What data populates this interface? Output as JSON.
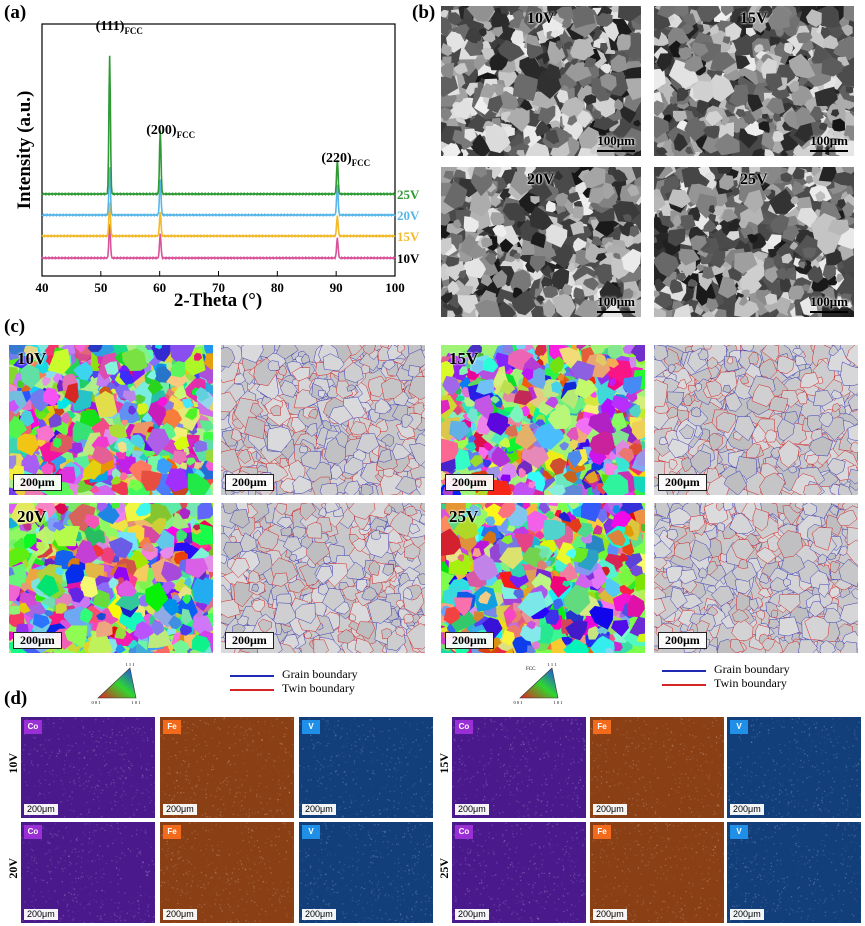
{
  "panel_labels": {
    "a": "(a)",
    "b": "(b)",
    "c": "(c)",
    "d": "(d)"
  },
  "chart_data": {
    "type": "line",
    "xlabel": "2-Theta (°)",
    "ylabel": "Intensity (a.u.)",
    "xlim": [
      40,
      100
    ],
    "xticks": [
      40,
      50,
      60,
      70,
      80,
      90,
      100
    ],
    "grid": false,
    "peaks": [
      {
        "hkl": "(111)",
        "sub": "FCC",
        "x": 51.5
      },
      {
        "hkl": "(200)",
        "sub": "FCC",
        "x": 60.1
      },
      {
        "hkl": "(220)",
        "sub": "FCC",
        "x": 90.2
      }
    ],
    "series": [
      {
        "name": "10V",
        "color": "#d9539a",
        "offset": 0,
        "heights": [
          34,
          24,
          20
        ]
      },
      {
        "name": "15V",
        "color": "#f2b92a",
        "offset": 1,
        "heights": [
          34,
          24,
          20
        ]
      },
      {
        "name": "20V",
        "color": "#58b7e8",
        "offset": 2,
        "heights": [
          48,
          36,
          30
        ]
      },
      {
        "name": "25V",
        "color": "#2f9a35",
        "offset": 3,
        "heights": [
          138,
          64,
          34
        ]
      }
    ]
  },
  "panel_b": {
    "images": [
      {
        "label": "10V",
        "scale": "100μm"
      },
      {
        "label": "15V",
        "scale": "100μm"
      },
      {
        "label": "20V",
        "scale": "100μm"
      },
      {
        "label": "25V",
        "scale": "100μm"
      }
    ]
  },
  "panel_c": {
    "groups": [
      {
        "label": "10V",
        "scale": "200μm"
      },
      {
        "label": "15V",
        "scale": "200μm"
      },
      {
        "label": "20V",
        "scale": "200μm"
      },
      {
        "label": "25V",
        "scale": "200μm"
      }
    ],
    "legend": {
      "grain": "Grain boundary",
      "twin": "Twin boundary",
      "grain_color": "#1f2bb5",
      "twin_color": "#d42424"
    },
    "ipf_left": {
      "top": "1 1 1",
      "bl": "0 0 1",
      "br": "1 0 1"
    },
    "ipf_right": {
      "top": "1 1 1",
      "bl": "0 0 1",
      "br": "1 0 1",
      "title": "FCC"
    }
  },
  "panel_d": {
    "elements": [
      {
        "name": "Co",
        "tag_color": "#9b2fd6",
        "bg": "#4a1a8c"
      },
      {
        "name": "Fe",
        "tag_color": "#f26b1d",
        "bg": "#8a3f14"
      },
      {
        "name": "V",
        "tag_color": "#1f8fe8",
        "bg": "#123e7a"
      }
    ],
    "rows": [
      "10V",
      "15V",
      "20V",
      "25V"
    ],
    "scale": "200μm"
  }
}
